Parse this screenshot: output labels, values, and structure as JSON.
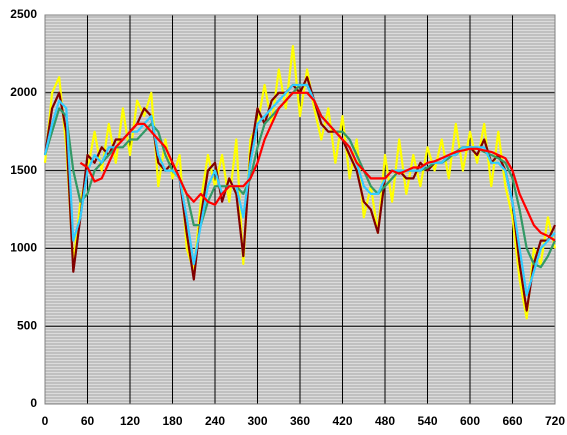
{
  "chart_data": {
    "type": "line",
    "x": [
      0,
      10,
      20,
      30,
      40,
      50,
      60,
      70,
      80,
      90,
      100,
      110,
      120,
      130,
      140,
      150,
      160,
      170,
      180,
      190,
      200,
      210,
      220,
      230,
      240,
      250,
      260,
      270,
      280,
      290,
      300,
      310,
      320,
      330,
      340,
      350,
      360,
      370,
      380,
      390,
      400,
      410,
      420,
      430,
      440,
      450,
      460,
      470,
      480,
      490,
      500,
      510,
      520,
      530,
      540,
      550,
      560,
      570,
      580,
      590,
      600,
      610,
      620,
      630,
      640,
      650,
      660,
      670,
      680,
      690,
      700,
      710,
      720
    ],
    "series": [
      {
        "color": "#ffff00",
        "values": [
          1550,
          2000,
          2100,
          1650,
          900,
          1300,
          1500,
          1750,
          1500,
          1800,
          1550,
          1900,
          1600,
          1950,
          1850,
          2000,
          1400,
          1700,
          1450,
          1600,
          1000,
          850,
          1300,
          1600,
          1400,
          1600,
          1300,
          1700,
          900,
          1700,
          1800,
          2050,
          1800,
          2150,
          1900,
          2300,
          1850,
          2150,
          1900,
          1700,
          1900,
          1550,
          1850,
          1450,
          1700,
          1200,
          1400,
          1100,
          1600,
          1300,
          1700,
          1350,
          1600,
          1400,
          1650,
          1500,
          1700,
          1450,
          1800,
          1500,
          1750,
          1550,
          1800,
          1400,
          1750,
          1400,
          1200,
          800,
          550,
          1000,
          900,
          1200,
          1000
        ]
      },
      {
        "color": "#800000",
        "values": [
          1600,
          1900,
          2000,
          1750,
          850,
          1200,
          1600,
          1550,
          1650,
          1600,
          1700,
          1700,
          1750,
          1800,
          1900,
          1850,
          1550,
          1500,
          1550,
          1450,
          1100,
          800,
          1200,
          1500,
          1550,
          1300,
          1450,
          1350,
          950,
          1600,
          1900,
          1800,
          1950,
          2000,
          2000,
          2050,
          2000,
          2100,
          1950,
          1800,
          1750,
          1750,
          1700,
          1600,
          1500,
          1300,
          1250,
          1100,
          1450,
          1500,
          1500,
          1450,
          1450,
          1550,
          1500,
          1550,
          1550,
          1600,
          1600,
          1650,
          1650,
          1600,
          1700,
          1550,
          1600,
          1500,
          1300,
          900,
          600,
          900,
          1050,
          1050,
          1150
        ]
      },
      {
        "color": "#339966",
        "values": [
          1600,
          1750,
          1900,
          1850,
          1500,
          1300,
          1350,
          1500,
          1550,
          1600,
          1650,
          1650,
          1700,
          1700,
          1750,
          1800,
          1750,
          1600,
          1500,
          1450,
          1350,
          1150,
          1150,
          1300,
          1400,
          1400,
          1400,
          1400,
          1350,
          1450,
          1650,
          1800,
          1850,
          1900,
          1950,
          2000,
          2050,
          2050,
          1950,
          1850,
          1800,
          1750,
          1750,
          1700,
          1600,
          1500,
          1400,
          1350,
          1400,
          1450,
          1500,
          1500,
          1500,
          1500,
          1520,
          1550,
          1550,
          1580,
          1620,
          1650,
          1650,
          1650,
          1620,
          1600,
          1580,
          1550,
          1450,
          1250,
          1000,
          900,
          880,
          950,
          1050
        ]
      },
      {
        "color": "#33ccff",
        "values": [
          1600,
          1800,
          1950,
          1900,
          1050,
          1200,
          1500,
          1600,
          1550,
          1650,
          1650,
          1700,
          1750,
          1750,
          1800,
          1850,
          1600,
          1500,
          1500,
          1450,
          1200,
          900,
          1150,
          1400,
          1500,
          1350,
          1400,
          1400,
          1200,
          1550,
          1800,
          1850,
          1900,
          1950,
          2000,
          2050,
          2050,
          2050,
          1950,
          1850,
          1800,
          1750,
          1700,
          1650,
          1550,
          1400,
          1350,
          1350,
          1450,
          1500,
          1500,
          1500,
          1500,
          1500,
          1550,
          1550,
          1550,
          1600,
          1600,
          1650,
          1650,
          1650,
          1650,
          1550,
          1550,
          1500,
          1300,
          1000,
          700,
          850,
          1000,
          1050,
          1100
        ]
      },
      {
        "color": "#ff0000",
        "values": [
          null,
          null,
          null,
          null,
          null,
          1550,
          1520,
          1430,
          1450,
          1550,
          1650,
          1700,
          1750,
          1800,
          1800,
          1750,
          1700,
          1650,
          1550,
          1450,
          1350,
          1300,
          1350,
          1300,
          1280,
          1350,
          1400,
          1400,
          1400,
          1450,
          1550,
          1700,
          1800,
          1900,
          1950,
          2000,
          2000,
          2000,
          1950,
          1850,
          1800,
          1750,
          1700,
          1650,
          1550,
          1500,
          1450,
          1450,
          1450,
          1500,
          1480,
          1500,
          1520,
          1520,
          1550,
          1560,
          1580,
          1600,
          1620,
          1630,
          1640,
          1640,
          1630,
          1620,
          1600,
          1580,
          1500,
          1350,
          1250,
          1150,
          1100,
          1080,
          1050
        ]
      }
    ],
    "xlim": [
      0,
      720
    ],
    "xticks": [
      0,
      60,
      120,
      180,
      240,
      300,
      360,
      420,
      480,
      540,
      600,
      660,
      720
    ],
    "ylim": [
      0,
      2500
    ],
    "yticks": [
      0,
      500,
      1000,
      1500,
      2000,
      2500
    ],
    "grid": true
  }
}
